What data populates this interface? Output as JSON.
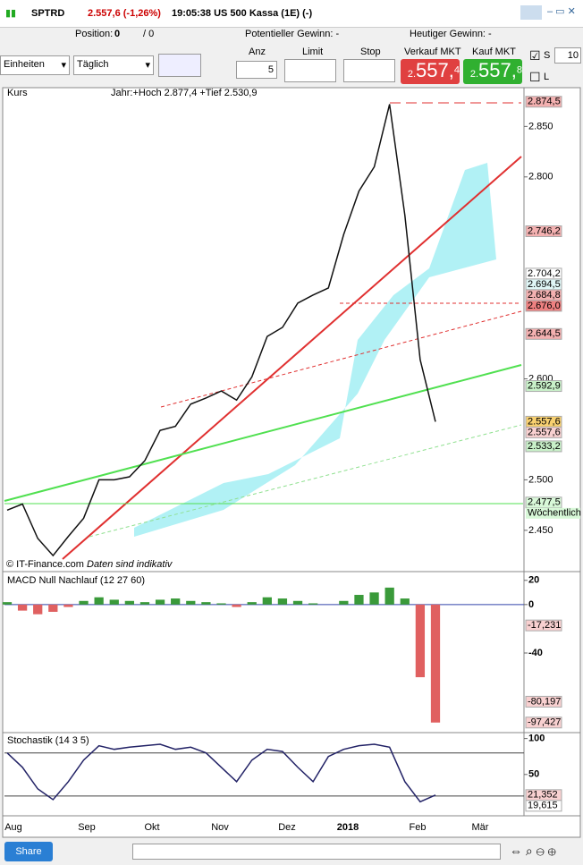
{
  "title_bar": {
    "symbol": "SPTRD",
    "quote": "2.557,6 (-1,26%)",
    "info": "19:05:38 US 500 Kassa (1E) (-)"
  },
  "status": {
    "position_label": "Position:",
    "position": "0",
    "slash": "/ 0",
    "potential": "Potentieller Gewinn: -",
    "today": "Heutiger Gewinn: -"
  },
  "toolbar": {
    "units": "Einheiten",
    "period": "Täglich",
    "qty_label": "Anz",
    "qty": "5",
    "limit": "Limit",
    "stop": "Stop",
    "sell_label": "Verkauf MKT",
    "sell_price": {
      "lead": "2.",
      "main": "557,",
      "tail": "4"
    },
    "buy_label": "Kauf MKT",
    "buy_price": {
      "lead": "2.",
      "main": "557,",
      "tail": "8"
    },
    "s_label": "S",
    "s_value": "10",
    "l_label": "L"
  },
  "chart_data": [
    {
      "type": "line",
      "title": "Kurs",
      "subtitle": "Jahr:+Hoch 2.877,4 +Tief 2.530,9",
      "color": "#111111",
      "values": [
        2470,
        2476,
        2442,
        2425,
        2444,
        2462,
        2500,
        2500,
        2503,
        2519,
        2549,
        2553,
        2575,
        2581,
        2588,
        2579,
        2602,
        2642,
        2651,
        2675,
        2683,
        2690,
        2743,
        2786,
        2810,
        2872,
        2762,
        2619,
        2557.6
      ],
      "ylim": [
        2410,
        2876
      ],
      "yticks": [
        {
          "value": 2450,
          "label": "2.450"
        },
        {
          "value": 2500,
          "label": "2.500"
        },
        {
          "value": 2600,
          "label": "2.600"
        },
        {
          "value": 2800,
          "label": "2.800"
        },
        {
          "value": 2850,
          "label": "2.850"
        }
      ],
      "price_tags": [
        {
          "value": 2874.5,
          "label": "2.874,5",
          "color": "#f3b0b0"
        },
        {
          "value": 2746.2,
          "label": "2.746,2",
          "color": "#f3b0b0"
        },
        {
          "value": 2704.2,
          "label": "2.704,2",
          "color": "#ffffff"
        },
        {
          "value": 2694.5,
          "label": "2.694,5",
          "color": "#e0f7f7"
        },
        {
          "value": 2684.8,
          "label": "2.684,8",
          "color": "#f3b0b0"
        },
        {
          "value": 2676.0,
          "label": "2.676,0",
          "color": "#ee8080"
        },
        {
          "value": 2644.5,
          "label": "2.644,5",
          "color": "#f3b0b0"
        },
        {
          "value": 2592.9,
          "label": "2.592,9",
          "color": "#c8f0c8"
        },
        {
          "value": 2557.6,
          "label": "2.557,6",
          "color": "#f8d070"
        },
        {
          "value": 2557.6,
          "label": "2.557,6",
          "color": "#f8d0d0"
        },
        {
          "value": 2533.2,
          "label": "2.533,2",
          "color": "#c8f0c8"
        },
        {
          "value": 2477.5,
          "label": "2.477,5",
          "color": "#d8f8d8",
          "note": "Wöchentlich"
        }
      ],
      "annotations": [
        "© IT-Finance.com",
        "Daten sind indikativ"
      ]
    },
    {
      "type": "bar",
      "title": "MACD Null Nachlauf (12 27 60)",
      "color": "#3a9a3a",
      "negative_color": "#e06060",
      "values": [
        2,
        -5,
        -8,
        -6,
        -2,
        3,
        6,
        4,
        3,
        2,
        4,
        5,
        3,
        2,
        1,
        -2,
        2,
        6,
        5,
        3,
        1,
        0,
        3,
        8,
        10,
        14,
        5,
        -60,
        -97.427
      ],
      "ylim": [
        -105,
        25
      ],
      "yticks": [
        20,
        0,
        -40
      ],
      "price_tags": [
        {
          "value": -17.231,
          "label": "-17,231",
          "color": "#f8d0d0"
        },
        {
          "value": -80.197,
          "label": "-80,197",
          "color": "#f8d0d0"
        },
        {
          "value": -97.427,
          "label": "-97,427",
          "color": "#f8d0d0"
        }
      ]
    },
    {
      "type": "line",
      "title": "Stochastik (14 3 5)",
      "color": "#222266",
      "values": [
        80,
        60,
        30,
        15,
        40,
        70,
        90,
        85,
        88,
        90,
        92,
        85,
        88,
        80,
        60,
        40,
        70,
        85,
        82,
        60,
        40,
        75,
        85,
        90,
        92,
        88,
        40,
        12,
        21.352
      ],
      "ylim": [
        -5,
        107
      ],
      "yticks": [
        100,
        50
      ],
      "levels": [
        80,
        20
      ],
      "price_tags": [
        {
          "value": 21.352,
          "label": "21,352",
          "color": "#f8d0d0"
        },
        {
          "value": 19.615,
          "label": "19,615",
          "color": "#ffffff"
        }
      ]
    }
  ],
  "time_axis": {
    "labels": [
      "Aug",
      "Sep",
      "Okt",
      "Nov",
      "Dez",
      "2018",
      "Feb",
      "Mär"
    ]
  },
  "share": "Share"
}
